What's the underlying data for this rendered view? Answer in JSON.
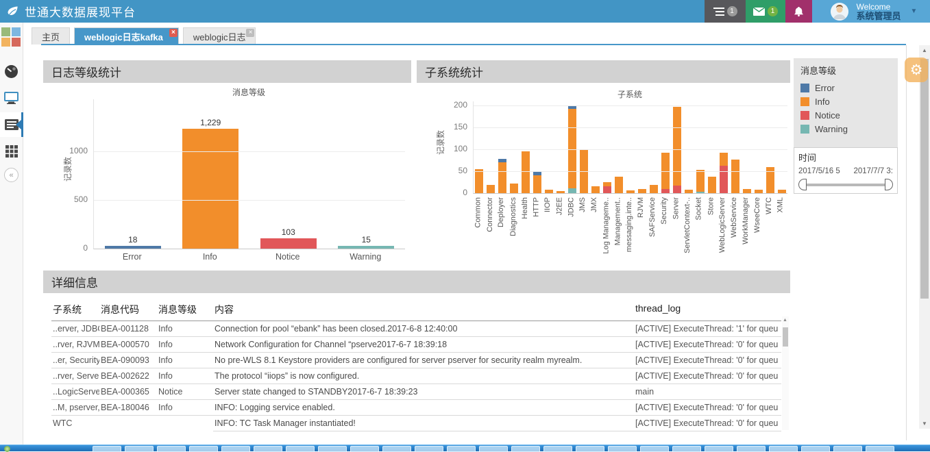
{
  "navbar": {
    "title": "世通大数据展现平台",
    "welcome": "Welcome",
    "username": "系统管理员",
    "tasks_badge": "1",
    "mail_badge": "1"
  },
  "tabs": [
    {
      "label": "主页",
      "active": false,
      "closable": false
    },
    {
      "label": "weblogic日志kafka",
      "active": true,
      "closable": true
    },
    {
      "label": "weblogic日志",
      "active": false,
      "closable": true
    }
  ],
  "panels": {
    "log_level_header": "日志等级统计",
    "subsystem_header": "子系统统计",
    "detail_header": "详细信息"
  },
  "legend": {
    "title": "消息等级",
    "items": [
      {
        "label": "Error",
        "color": "#4e79a7"
      },
      {
        "label": "Info",
        "color": "#f28e2b"
      },
      {
        "label": "Notice",
        "color": "#e15759"
      },
      {
        "label": "Warning",
        "color": "#76b7b2"
      }
    ]
  },
  "time_filter": {
    "title": "时间",
    "start_label": "2017/5/16 5",
    "end_label": "2017/7/7 3:"
  },
  "chart_data": [
    {
      "type": "bar",
      "title": "消息等级",
      "ylabel": "记录数",
      "categories": [
        "Error",
        "Info",
        "Notice",
        "Warning"
      ],
      "values": [
        18,
        1229,
        103,
        15
      ],
      "value_labels": [
        "18",
        "1,229",
        "103",
        "15"
      ],
      "colors": [
        "#4e79a7",
        "#f28e2b",
        "#e15759",
        "#76b7b2"
      ],
      "yticks": [
        0,
        500,
        1000
      ],
      "ylim": [
        0,
        1530
      ],
      "grid": true
    },
    {
      "type": "stacked-bar",
      "title": "子系统",
      "ylabel": "记录数",
      "yticks": [
        0,
        50,
        100,
        150,
        200
      ],
      "ylim": [
        0,
        210
      ],
      "grid": true,
      "legend_position": "right-panel",
      "categories": [
        "Common",
        "Connector",
        "Deployer",
        "Diagnostics",
        "Health",
        "HTTP",
        "IIOP",
        "J2EE",
        "JDBC",
        "JMS",
        "JMX",
        "Log Manageme..",
        "Management..",
        "messaging.inte..",
        "RJVM",
        "SAFService",
        "Security",
        "Server",
        "ServletContext-..",
        "Socket",
        "Store",
        "WebLogicServer",
        "WebService",
        "WorkManager",
        "WseeCore",
        "WTC",
        "XML"
      ],
      "series": [
        {
          "name": "Warning",
          "color": "#76b7b2",
          "values": [
            0,
            0,
            0,
            0,
            0,
            0,
            0,
            0,
            11,
            0,
            0,
            0,
            0,
            0,
            0,
            0,
            0,
            0,
            0,
            3,
            0,
            0,
            0,
            0,
            0,
            0,
            0
          ]
        },
        {
          "name": "Notice",
          "color": "#e15759",
          "values": [
            0,
            0,
            0,
            0,
            0,
            0,
            0,
            0,
            0,
            0,
            0,
            15,
            0,
            0,
            0,
            0,
            9,
            17,
            0,
            0,
            0,
            62,
            0,
            0,
            0,
            0,
            0
          ]
        },
        {
          "name": "Info",
          "color": "#f28e2b",
          "values": [
            55,
            18,
            70,
            22,
            95,
            40,
            8,
            5,
            182,
            100,
            16,
            10,
            38,
            7,
            9,
            18,
            83,
            180,
            8,
            50,
            37,
            30,
            76,
            9,
            8,
            60,
            8
          ]
        },
        {
          "name": "Error",
          "color": "#4e79a7",
          "values": [
            0,
            0,
            8,
            0,
            0,
            8,
            0,
            0,
            7,
            0,
            0,
            0,
            0,
            0,
            0,
            0,
            0,
            0,
            0,
            0,
            0,
            0,
            0,
            0,
            0,
            0,
            0
          ]
        }
      ]
    }
  ],
  "table": {
    "columns": [
      "子系统",
      "消息代码",
      "消息等级",
      "内容",
      "thread_log"
    ],
    "rows": [
      {
        "subsystem": "..erver, JDBC",
        "code": "BEA-001128",
        "level": "Info",
        "content": "Connection for pool “ebank” has been closed.2017-6-8 12:40:00",
        "thread": "[ACTIVE] ExecuteThread: '1' for queu",
        "partial": false
      },
      {
        "subsystem": "..rver, RJVM",
        "code": "BEA-000570",
        "level": "Info",
        "content": "Network Configuration for Channel “pserve2017-6-7 18:39:18",
        "thread": "[ACTIVE] ExecuteThread: '0' for queu",
        "partial": false
      },
      {
        "subsystem": "..er, Security",
        "code": "BEA-090093",
        "level": "Info",
        "content": "No pre-WLS 8.1 Keystore providers are configured for server pserver for security realm myrealm.",
        "thread": "[ACTIVE] ExecuteThread: '0' for queu",
        "partial": false
      },
      {
        "subsystem": "..rver, Server",
        "code": "BEA-002622",
        "level": "Info",
        "content": "The protocol “iiops” is now configured.",
        "thread": "[ACTIVE] ExecuteThread: '0' for queu",
        "partial": false
      },
      {
        "subsystem": "..LogicServer",
        "code": "BEA-000365",
        "level": "Notice",
        "content": "Server state changed to STANDBY2017-6-7 18:39:23",
        "thread": "main",
        "partial": false
      },
      {
        "subsystem": "..M, pserver,",
        "code": "BEA-180046",
        "level": "Info",
        "content": "INFO: Logging service enabled.",
        "thread": "[ACTIVE] ExecuteThread: '0' for queu",
        "partial": false
      },
      {
        "subsystem": "WTC",
        "code": "",
        "level": "",
        "content": "INFO: TC Task Manager instantiated!",
        "thread": "[ACTIVE] ExecuteThread: '0' for queu",
        "partial": true
      }
    ]
  },
  "colors": {
    "navbar": "#4295c5",
    "active_tab": "#4797c9",
    "panel_header": "#d2d2d2",
    "legend_bg": "#e6e6e6",
    "error": "#4e79a7",
    "info": "#f28e2b",
    "notice": "#e15759",
    "warning": "#76b7b2"
  }
}
